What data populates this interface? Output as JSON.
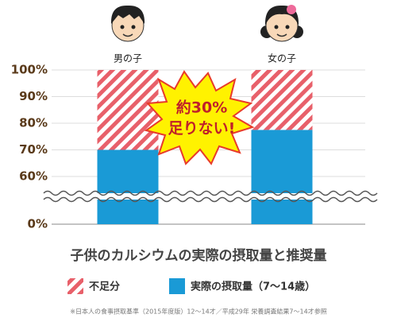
{
  "chart_data": {
    "type": "stacked_bar",
    "title": "子供のカルシウムの実際の摂取量と推奨量",
    "categories": [
      "男の子",
      "女の子"
    ],
    "series": [
      {
        "name": "実際の摂取量（7〜14歳）",
        "color": "#1a9ad6",
        "values": [
          70,
          77.5
        ]
      },
      {
        "name": "不足分",
        "color": "#e8606a",
        "pattern": "hatch",
        "values": [
          30,
          22.5
        ]
      }
    ],
    "ylim": [
      0,
      100
    ],
    "axis_break": [
      0,
      60
    ],
    "yticks": [
      {
        "value": 0,
        "label": "0%"
      },
      {
        "value": 60,
        "label": "60%"
      },
      {
        "value": 70,
        "label": "70%"
      },
      {
        "value": 80,
        "label": "80%"
      },
      {
        "value": 90,
        "label": "90%"
      },
      {
        "value": 100,
        "label": "100%"
      }
    ],
    "grid": true,
    "annotation": [
      "約30%",
      "足りない!"
    ],
    "legend_order": [
      1,
      0
    ],
    "footnote": "※日本人の食事摂取基準（2015年度版）12～14才／平成29年 栄養調査結果7～14才参照"
  }
}
